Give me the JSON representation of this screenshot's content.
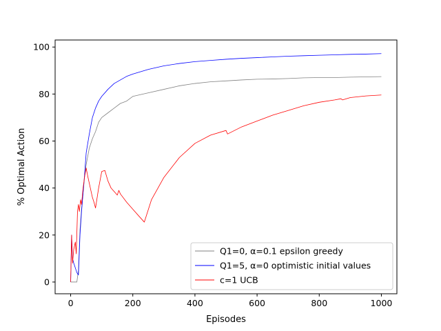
{
  "chart_data": {
    "type": "line",
    "title": "",
    "xlabel": "Episodes",
    "ylabel": "% Optimal Action",
    "xlim": [
      -50,
      1050
    ],
    "ylim": [
      -5,
      103
    ],
    "xticks": [
      0,
      200,
      400,
      600,
      800,
      1000
    ],
    "yticks": [
      0,
      20,
      40,
      60,
      80,
      100
    ],
    "grid": false,
    "legend_position": "lower-right",
    "series": [
      {
        "name": "Q1=0, α=0.1 epsilon greedy",
        "color": "#808080",
        "x": [
          0,
          10,
          20,
          25,
          30,
          35,
          40,
          45,
          50,
          60,
          70,
          80,
          90,
          100,
          120,
          140,
          160,
          180,
          200,
          250,
          300,
          350,
          400,
          450,
          500,
          550,
          600,
          650,
          700,
          750,
          800,
          850,
          900,
          950,
          1000
        ],
        "y": [
          0,
          0,
          0,
          5,
          22,
          31,
          38,
          45,
          50,
          57,
          61,
          64,
          68,
          70,
          72,
          74,
          76,
          77,
          79,
          80.5,
          82,
          83.5,
          84.5,
          85.2,
          85.6,
          86,
          86.3,
          86.4,
          86.6,
          86.9,
          87,
          87,
          87.2,
          87.3,
          87.4
        ]
      },
      {
        "name": "Q1=5, α=0 optimistic initial values",
        "color": "#0000ff",
        "x": [
          0,
          3,
          6,
          10,
          15,
          20,
          25,
          30,
          35,
          40,
          45,
          50,
          60,
          70,
          80,
          90,
          100,
          120,
          140,
          160,
          180,
          200,
          250,
          300,
          350,
          400,
          450,
          500,
          550,
          600,
          650,
          700,
          750,
          800,
          850,
          900,
          950,
          1000
        ],
        "y": [
          0,
          20,
          10,
          8,
          6,
          4,
          3,
          20,
          30,
          38,
          46,
          55,
          63,
          70,
          74,
          77,
          79,
          82,
          84.5,
          86,
          87.5,
          88.5,
          90.5,
          92,
          93,
          93.8,
          94.3,
          94.8,
          95.2,
          95.5,
          95.8,
          96.1,
          96.3,
          96.5,
          96.7,
          96.9,
          97,
          97.2
        ]
      },
      {
        "name": "c=1 UCB",
        "color": "#ff0000",
        "x": [
          0,
          3,
          6,
          10,
          15,
          18,
          22,
          25,
          28,
          32,
          35,
          40,
          45,
          50,
          55,
          60,
          65,
          70,
          75,
          80,
          90,
          100,
          110,
          120,
          130,
          140,
          150,
          155,
          160,
          180,
          200,
          220,
          237,
          260,
          300,
          350,
          400,
          450,
          500,
          505,
          550,
          600,
          650,
          700,
          750,
          800,
          850,
          870,
          875,
          900,
          950,
          1000
        ],
        "y": [
          0,
          20,
          8,
          14,
          17,
          12,
          30,
          33,
          30,
          35,
          33,
          40,
          45,
          48.5,
          45,
          42,
          39,
          36,
          34,
          31.5,
          40,
          47,
          47.5,
          43,
          40,
          38.5,
          37,
          39,
          37.5,
          34,
          31,
          28,
          25.5,
          35,
          44.5,
          53,
          59,
          62.5,
          64.5,
          63,
          66,
          68.5,
          71,
          73,
          75,
          76.5,
          77.5,
          78,
          77.5,
          78.5,
          79.2,
          79.6
        ]
      }
    ]
  }
}
